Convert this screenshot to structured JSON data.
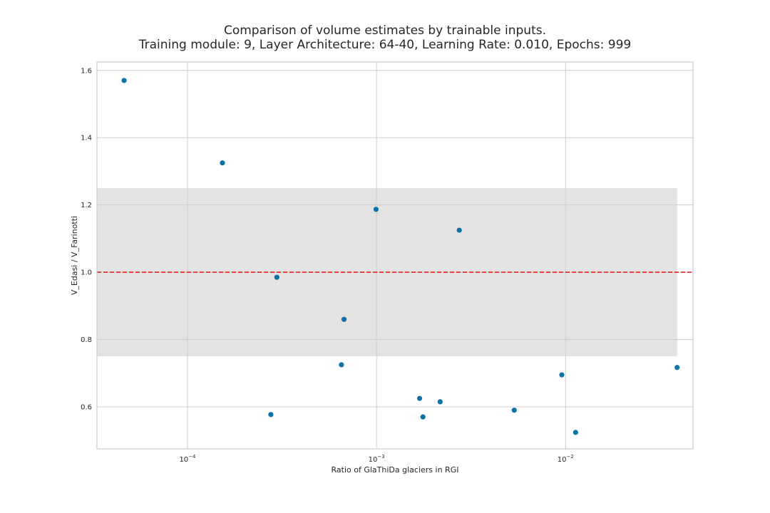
{
  "chart_data": {
    "type": "scatter",
    "title": "Comparison of volume estimates by trainable inputs.",
    "subtitle": "Training module: 9, Layer Architecture: 64-40, Learning Rate: 0.010, Epochs: 999",
    "xlabel": "Ratio of GlaThiDa glaciers in RGI",
    "ylabel": "V_Edasi / V_Farinotti",
    "xscale": "log",
    "xlim": [
      3.32e-05,
      0.0472
    ],
    "ylim": [
      0.475,
      1.625
    ],
    "grid": true,
    "x_ticks": [
      {
        "value": 0.0001,
        "base": "10",
        "exp": "−4"
      },
      {
        "value": 0.001,
        "base": "10",
        "exp": "−3"
      },
      {
        "value": 0.01,
        "base": "10",
        "exp": "−2"
      }
    ],
    "y_ticks": [
      {
        "value": 0.6,
        "label": "0.6"
      },
      {
        "value": 0.8,
        "label": "0.8"
      },
      {
        "value": 1.0,
        "label": "1.0"
      },
      {
        "value": 1.2,
        "label": "1.2"
      },
      {
        "value": 1.4,
        "label": "1.4"
      },
      {
        "value": 1.6,
        "label": "1.6"
      }
    ],
    "band": {
      "ymin": 0.75,
      "ymax": 1.25,
      "xmin": 3.32e-05,
      "xmax": 0.0389,
      "color": "#e3e3e3"
    },
    "reference_line": {
      "y": 1.0,
      "style": "dashed",
      "color": "#e8201b"
    },
    "point_color": "#0d72a6",
    "points": [
      {
        "x": 4.62e-05,
        "y": 1.57
      },
      {
        "x": 0.000153,
        "y": 1.325
      },
      {
        "x": 0.000276,
        "y": 0.577
      },
      {
        "x": 0.000297,
        "y": 0.985
      },
      {
        "x": 0.000652,
        "y": 0.725
      },
      {
        "x": 0.000673,
        "y": 0.86
      },
      {
        "x": 0.000994,
        "y": 1.187
      },
      {
        "x": 0.00169,
        "y": 0.625
      },
      {
        "x": 0.00176,
        "y": 0.57
      },
      {
        "x": 0.00217,
        "y": 0.615
      },
      {
        "x": 0.00274,
        "y": 1.125
      },
      {
        "x": 0.00535,
        "y": 0.59
      },
      {
        "x": 0.00955,
        "y": 0.695
      },
      {
        "x": 0.0113,
        "y": 0.524
      },
      {
        "x": 0.0389,
        "y": 0.717
      }
    ]
  }
}
